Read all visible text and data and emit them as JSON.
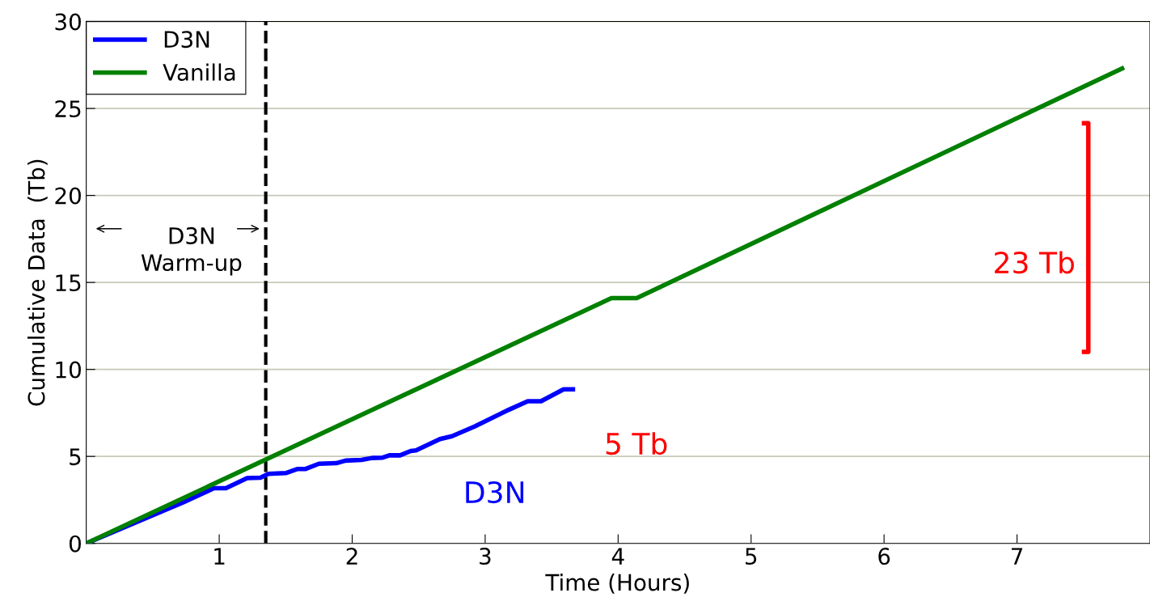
{
  "chart_data": {
    "type": "line",
    "xlabel": "Time (Hours)",
    "ylabel": "Cumulative Data  (Tb)",
    "xlim": [
      0,
      8.0
    ],
    "xticks": [
      1,
      2,
      3,
      4,
      5,
      6,
      7
    ],
    "ylim": [
      0,
      30
    ],
    "yticks": [
      0,
      5,
      10,
      15,
      20,
      25,
      30
    ],
    "grid": "y",
    "legend": "top left",
    "line_style": "solid",
    "marker": "none",
    "series": [
      {
        "name": "D3N",
        "color": "#0000ff",
        "x": [
          0,
          0.73,
          0.96,
          1.05,
          1.21,
          1.31,
          1.37,
          1.5,
          1.59,
          1.65,
          1.75,
          1.88,
          1.95,
          2.07,
          2.15,
          2.23,
          2.28,
          2.36,
          2.44,
          2.48,
          2.66,
          2.75,
          2.92,
          3.18,
          3.32,
          3.42,
          3.59,
          3.66
        ],
        "values": [
          0,
          2.36,
          3.17,
          3.17,
          3.75,
          3.78,
          4.0,
          4.04,
          4.28,
          4.28,
          4.58,
          4.61,
          4.76,
          4.8,
          4.91,
          4.93,
          5.06,
          5.06,
          5.31,
          5.35,
          6.0,
          6.16,
          6.72,
          7.69,
          8.17,
          8.17,
          8.86,
          8.86
        ]
      },
      {
        "name": "Vanilla",
        "color": "#008000",
        "x": [
          0,
          3.95,
          4.14,
          7.79
        ],
        "values": [
          0,
          14.1,
          14.1,
          27.3
        ]
      }
    ],
    "ref_lines": [
      {
        "axis": "x",
        "value": 1.35,
        "color": "#000000",
        "line_style": "dashed"
      }
    ],
    "annotations": [
      "D3N\nWarm-up",
      "23 Tb",
      "5 Tb",
      "D3N"
    ]
  }
}
